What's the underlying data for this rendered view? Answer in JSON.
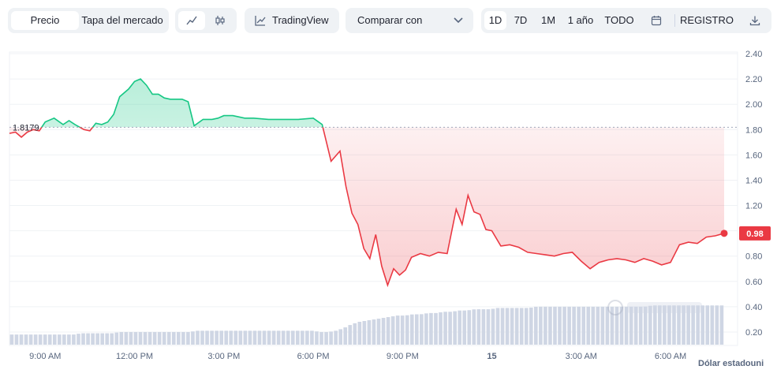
{
  "toolbar": {
    "view_tabs": [
      {
        "label": "Precio",
        "active": true
      },
      {
        "label": "Tapa del mercado",
        "active": false
      }
    ],
    "chart_type_icons": [
      "line-chart-icon",
      "candlestick-icon"
    ],
    "tradingview_label": "TradingView",
    "compare_label": "Comparar con",
    "ranges": [
      {
        "label": "1D",
        "active": true
      },
      {
        "label": "7D",
        "active": false
      },
      {
        "label": "1M",
        "active": false
      },
      {
        "label": "1 año",
        "active": false
      },
      {
        "label": "TODO",
        "active": false
      }
    ],
    "registro_label": "REGISTRO"
  },
  "colors": {
    "up": "#16c784",
    "down": "#ea3943",
    "volume": "#cfd6e4",
    "grid": "#eff2f5",
    "reference": "#a1a7bb"
  },
  "chart_data": {
    "type": "line",
    "reference_value": 1.8179,
    "reference_label": "1.8179",
    "current_value": 0.98,
    "current_label": "0.98",
    "ylim": [
      0.1,
      2.45
    ],
    "y_ticks": [
      "2.40",
      "2.20",
      "2.00",
      "1.80",
      "1.60",
      "1.40",
      "1.20",
      "1.00",
      "0.80",
      "0.60",
      "0.40",
      "0.20"
    ],
    "y_tick_values": [
      2.4,
      2.2,
      2.0,
      1.8,
      1.6,
      1.4,
      1.2,
      1.0,
      0.8,
      0.6,
      0.4,
      0.2
    ],
    "x_ticks": [
      "9:00 AM",
      "12:00 PM",
      "3:00 PM",
      "6:00 PM",
      "9:00 PM",
      "15",
      "3:00 AM",
      "6:00 AM"
    ],
    "x_tick_hours": [
      9,
      12,
      15,
      18,
      21,
      24,
      27,
      30
    ],
    "xlim_hours": [
      7.8,
      31.8
    ],
    "ylabel": "Dólar estadouni",
    "price": {
      "hours": [
        7.8,
        8.0,
        8.2,
        8.4,
        8.6,
        8.8,
        9.0,
        9.3,
        9.6,
        9.8,
        10.0,
        10.3,
        10.5,
        10.7,
        10.9,
        11.1,
        11.3,
        11.5,
        11.8,
        12.0,
        12.2,
        12.4,
        12.6,
        12.8,
        13.0,
        13.2,
        13.4,
        13.6,
        13.8,
        14.0,
        14.3,
        14.6,
        14.8,
        15.0,
        15.3,
        15.7,
        16.0,
        16.5,
        17.0,
        17.5,
        18.0,
        18.3,
        18.6,
        18.9,
        19.1,
        19.3,
        19.5,
        19.7,
        19.9,
        20.1,
        20.3,
        20.5,
        20.7,
        20.9,
        21.1,
        21.3,
        21.6,
        21.9,
        22.2,
        22.5,
        22.8,
        23.0,
        23.2,
        23.4,
        23.6,
        23.8,
        24.0,
        24.3,
        24.6,
        24.9,
        25.2,
        25.5,
        25.8,
        26.1,
        26.4,
        26.7,
        27.0,
        27.3,
        27.6,
        27.9,
        28.2,
        28.5,
        28.8,
        29.1,
        29.4,
        29.7,
        30.0,
        30.3,
        30.6,
        30.9,
        31.2,
        31.5,
        31.8
      ],
      "values": [
        1.77,
        1.78,
        1.74,
        1.78,
        1.8,
        1.79,
        1.86,
        1.89,
        1.84,
        1.87,
        1.84,
        1.8,
        1.79,
        1.85,
        1.84,
        1.86,
        1.92,
        2.06,
        2.12,
        2.18,
        2.2,
        2.15,
        2.08,
        2.08,
        2.05,
        2.04,
        2.04,
        2.04,
        2.02,
        1.83,
        1.88,
        1.88,
        1.89,
        1.91,
        1.91,
        1.89,
        1.89,
        1.88,
        1.88,
        1.88,
        1.89,
        1.84,
        1.55,
        1.63,
        1.35,
        1.14,
        1.05,
        0.86,
        0.78,
        0.97,
        0.72,
        0.57,
        0.7,
        0.65,
        0.69,
        0.79,
        0.82,
        0.8,
        0.83,
        0.82,
        1.17,
        1.05,
        1.28,
        1.15,
        1.13,
        1.01,
        1.0,
        0.88,
        0.89,
        0.87,
        0.83,
        0.82,
        0.81,
        0.8,
        0.82,
        0.83,
        0.76,
        0.7,
        0.75,
        0.77,
        0.78,
        0.77,
        0.75,
        0.78,
        0.76,
        0.73,
        0.75,
        0.89,
        0.91,
        0.9,
        0.95,
        0.96,
        0.98
      ]
    },
    "volume": {
      "description_values_relative": [
        0.18,
        0.18,
        0.18,
        0.18,
        0.18,
        0.18,
        0.18,
        0.18,
        0.18,
        0.19,
        0.19,
        0.19,
        0.19,
        0.19,
        0.2,
        0.2,
        0.2,
        0.2,
        0.2,
        0.2,
        0.2,
        0.2,
        0.2,
        0.2,
        0.21,
        0.21,
        0.21,
        0.21,
        0.21,
        0.21,
        0.21,
        0.21,
        0.21,
        0.21,
        0.21,
        0.21,
        0.21,
        0.21,
        0.21,
        0.21,
        0.2,
        0.2,
        0.21,
        0.23,
        0.26,
        0.28,
        0.29,
        0.3,
        0.31,
        0.32,
        0.33,
        0.33,
        0.34,
        0.34,
        0.35,
        0.35,
        0.36,
        0.36,
        0.37,
        0.37,
        0.38,
        0.38,
        0.38,
        0.39,
        0.39,
        0.39,
        0.39,
        0.39,
        0.4,
        0.4,
        0.4,
        0.4,
        0.4,
        0.4,
        0.4,
        0.4,
        0.4,
        0.4,
        0.4,
        0.4,
        0.4,
        0.4,
        0.4,
        0.41,
        0.41,
        0.41,
        0.41,
        0.41,
        0.41,
        0.41,
        0.41,
        0.41,
        0.41
      ]
    }
  }
}
